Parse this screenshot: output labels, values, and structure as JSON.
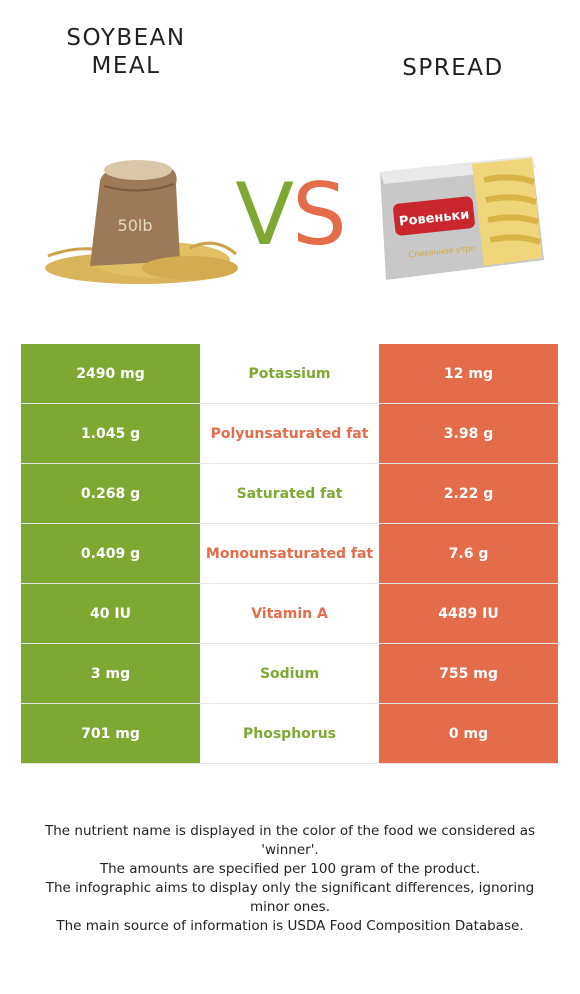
{
  "left_food": {
    "name": "SOYBEAN\nMEAL",
    "sack_label": "50lb",
    "color": "#7fa832"
  },
  "right_food": {
    "name": "SPREAD",
    "brand": "Ровеньки",
    "product_text": "Сливочное утро",
    "color": "#e46c4a"
  },
  "vs": {
    "v": "V",
    "s": "S"
  },
  "rows": [
    {
      "left": "2490 mg",
      "nutrient": "Potassium",
      "right": "12 mg",
      "winner": "left"
    },
    {
      "left": "1.045 g",
      "nutrient": "Polyunsaturated fat",
      "right": "3.98 g",
      "winner": "right"
    },
    {
      "left": "0.268 g",
      "nutrient": "Saturated fat",
      "right": "2.22 g",
      "winner": "left"
    },
    {
      "left": "0.409 g",
      "nutrient": "Monounsaturated fat",
      "right": "7.6 g",
      "winner": "right"
    },
    {
      "left": "40 IU",
      "nutrient": "Vitamin A",
      "right": "4489 IU",
      "winner": "right"
    },
    {
      "left": "3 mg",
      "nutrient": "Sodium",
      "right": "755 mg",
      "winner": "left"
    },
    {
      "left": "701 mg",
      "nutrient": "Phosphorus",
      "right": "0 mg",
      "winner": "left"
    }
  ],
  "notes": [
    "The nutrient name is displayed in the color of the food we considered as 'winner'.",
    "The amounts are specified per 100 gram of the product.",
    "The infographic aims to display only the significant differences, ignoring minor ones.",
    "The main source of information is USDA Food Composition Database."
  ]
}
